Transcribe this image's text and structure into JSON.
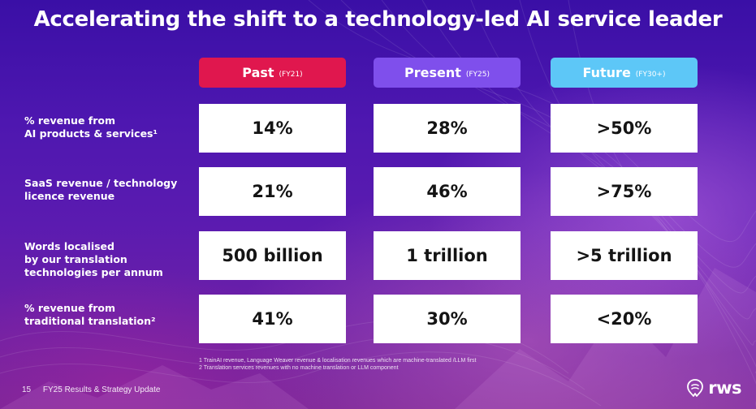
{
  "title": "Accelerating the shift to a technology-led AI service leader",
  "columns": [
    {
      "label": "Past",
      "period": "(FY21)"
    },
    {
      "label": "Present",
      "period": "(FY25)"
    },
    {
      "label": "Future",
      "period": "(FY30+)"
    }
  ],
  "rows": [
    {
      "label_lines": [
        "% revenue from",
        "AI products & services¹"
      ],
      "values": [
        "14%",
        "28%",
        ">50%"
      ]
    },
    {
      "label_lines": [
        "SaaS revenue / technology",
        "licence revenue"
      ],
      "values": [
        "21%",
        "46%",
        ">75%"
      ]
    },
    {
      "label_lines": [
        "Words localised",
        "by our translation",
        "technologies per annum"
      ],
      "values": [
        "500 billion",
        "1 trillion",
        ">5 trillion"
      ]
    },
    {
      "label_lines": [
        "% revenue from",
        "traditional translation²"
      ],
      "values": [
        "41%",
        "30%",
        "<20%"
      ]
    }
  ],
  "footnotes": [
    "1 TrainAI revenue, Language Weaver revenue & localisation revenues which are machine-translated /LLM first",
    "2 Translation services revenues with no machine translation or LLM component"
  ],
  "footer": {
    "page_number": "15",
    "text": "FY25 Results & Strategy Update"
  },
  "logo": {
    "text": "rws",
    "icon": "rws-logo-icon"
  },
  "colors": {
    "past": "#e0174e",
    "present": "#7f4fec",
    "future": "#5dc7f7"
  }
}
